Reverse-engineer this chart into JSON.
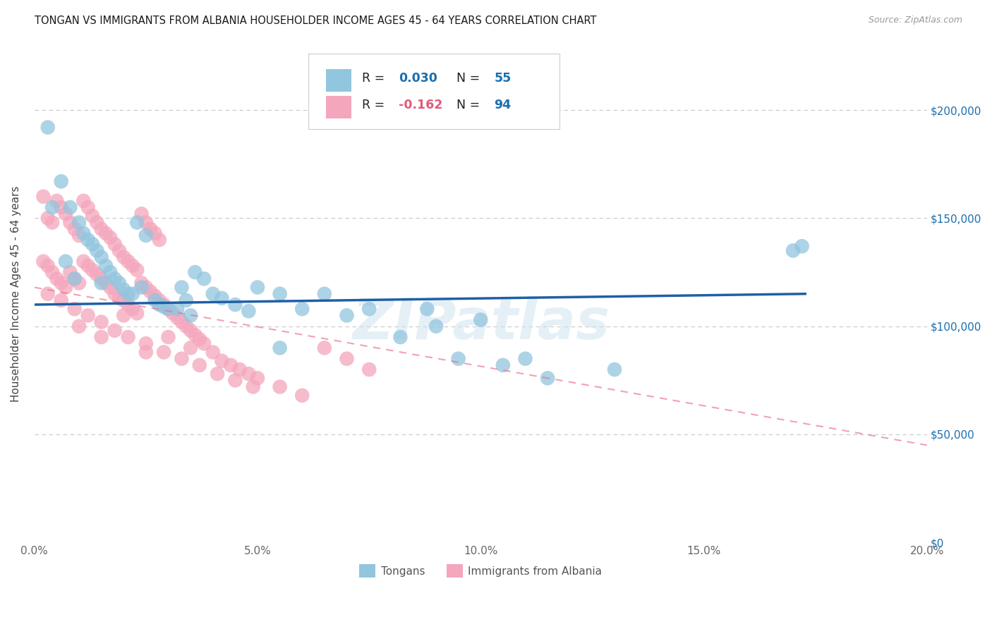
{
  "title": "TONGAN VS IMMIGRANTS FROM ALBANIA HOUSEHOLDER INCOME AGES 45 - 64 YEARS CORRELATION CHART",
  "source": "Source: ZipAtlas.com",
  "ylabel": "Householder Income Ages 45 - 64 years",
  "xlim": [
    0.0,
    0.2
  ],
  "ylim": [
    0,
    230000
  ],
  "ytick_values": [
    0,
    50000,
    100000,
    150000,
    200000
  ],
  "ytick_labels_right": [
    "$0",
    "$50,000",
    "$100,000",
    "$150,000",
    "$200,000"
  ],
  "watermark": "ZIPatlas",
  "legend_label1": "Tongans",
  "legend_label2": "Immigrants from Albania",
  "blue_color": "#92c5de",
  "pink_color": "#f4a6bc",
  "blue_line_color": "#1f5fa6",
  "pink_line_color": "#e8708a",
  "blue_line_x": [
    0.0,
    0.173
  ],
  "blue_line_y": [
    110000,
    115000
  ],
  "pink_line_x": [
    0.0,
    0.2
  ],
  "pink_line_y": [
    118000,
    45000
  ],
  "tongans_x": [
    0.003,
    0.006,
    0.008,
    0.01,
    0.011,
    0.012,
    0.013,
    0.014,
    0.015,
    0.016,
    0.017,
    0.018,
    0.019,
    0.02,
    0.021,
    0.022,
    0.023,
    0.025,
    0.027,
    0.028,
    0.029,
    0.03,
    0.032,
    0.033,
    0.034,
    0.036,
    0.038,
    0.04,
    0.042,
    0.045,
    0.048,
    0.05,
    0.055,
    0.06,
    0.065,
    0.07,
    0.075,
    0.082,
    0.088,
    0.095,
    0.1,
    0.11,
    0.13,
    0.17,
    0.172,
    0.004,
    0.007,
    0.009,
    0.015,
    0.024,
    0.035,
    0.055,
    0.09,
    0.105,
    0.115
  ],
  "tongans_y": [
    192000,
    167000,
    155000,
    148000,
    143000,
    140000,
    138000,
    135000,
    132000,
    128000,
    125000,
    122000,
    120000,
    117000,
    115000,
    115000,
    148000,
    142000,
    112000,
    110000,
    109000,
    108000,
    108000,
    118000,
    112000,
    125000,
    122000,
    115000,
    113000,
    110000,
    107000,
    118000,
    115000,
    108000,
    115000,
    105000,
    108000,
    95000,
    108000,
    85000,
    103000,
    85000,
    80000,
    135000,
    137000,
    155000,
    130000,
    122000,
    120000,
    118000,
    105000,
    90000,
    100000,
    82000,
    76000
  ],
  "albania_x": [
    0.002,
    0.003,
    0.004,
    0.005,
    0.006,
    0.007,
    0.008,
    0.009,
    0.01,
    0.011,
    0.012,
    0.013,
    0.014,
    0.015,
    0.016,
    0.017,
    0.018,
    0.019,
    0.02,
    0.021,
    0.022,
    0.023,
    0.024,
    0.025,
    0.026,
    0.027,
    0.028,
    0.002,
    0.003,
    0.004,
    0.005,
    0.006,
    0.007,
    0.008,
    0.009,
    0.01,
    0.011,
    0.012,
    0.013,
    0.014,
    0.015,
    0.016,
    0.017,
    0.018,
    0.019,
    0.02,
    0.021,
    0.022,
    0.023,
    0.024,
    0.025,
    0.026,
    0.027,
    0.028,
    0.029,
    0.03,
    0.031,
    0.032,
    0.033,
    0.034,
    0.035,
    0.036,
    0.037,
    0.038,
    0.04,
    0.042,
    0.044,
    0.046,
    0.048,
    0.05,
    0.055,
    0.06,
    0.065,
    0.07,
    0.075,
    0.003,
    0.006,
    0.009,
    0.012,
    0.015,
    0.018,
    0.021,
    0.025,
    0.029,
    0.033,
    0.037,
    0.041,
    0.045,
    0.049,
    0.03,
    0.035,
    0.02,
    0.01,
    0.015,
    0.025
  ],
  "albania_y": [
    160000,
    150000,
    148000,
    158000,
    155000,
    152000,
    148000,
    145000,
    142000,
    158000,
    155000,
    151000,
    148000,
    145000,
    143000,
    141000,
    138000,
    135000,
    132000,
    130000,
    128000,
    126000,
    152000,
    148000,
    145000,
    143000,
    140000,
    130000,
    128000,
    125000,
    122000,
    120000,
    118000,
    125000,
    122000,
    120000,
    130000,
    128000,
    126000,
    124000,
    122000,
    120000,
    118000,
    115000,
    113000,
    112000,
    110000,
    108000,
    106000,
    120000,
    118000,
    116000,
    114000,
    112000,
    110000,
    108000,
    106000,
    104000,
    102000,
    100000,
    98000,
    96000,
    94000,
    92000,
    88000,
    84000,
    82000,
    80000,
    78000,
    76000,
    72000,
    68000,
    90000,
    85000,
    80000,
    115000,
    112000,
    108000,
    105000,
    102000,
    98000,
    95000,
    92000,
    88000,
    85000,
    82000,
    78000,
    75000,
    72000,
    95000,
    90000,
    105000,
    100000,
    95000,
    88000
  ]
}
